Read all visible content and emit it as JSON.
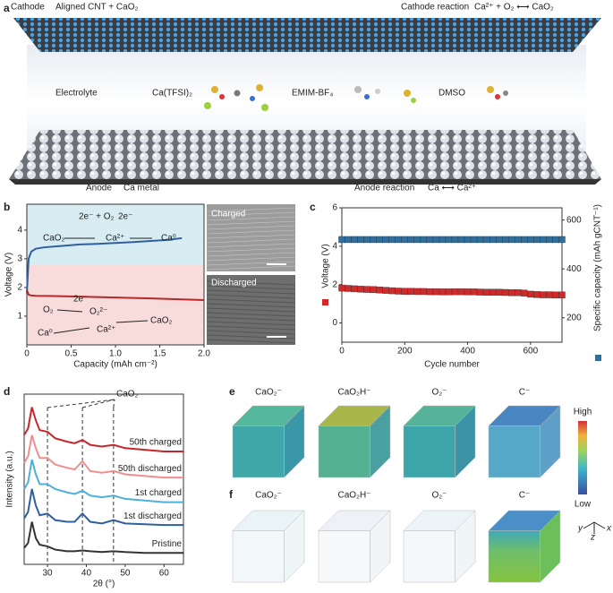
{
  "panel_labels": [
    "a",
    "b",
    "c",
    "d",
    "e",
    "f"
  ],
  "panel_a": {
    "cathode": "Cathode",
    "cathode_material": "Aligned CNT + CaO₂",
    "cathode_reaction": "Cathode reaction",
    "cathode_equation": "Ca²⁺ + O₂ ⟷ CaO₂",
    "electrolyte": "Electrolyte",
    "salt": "Ca(TFSI)₂",
    "ionic_liquid": "EMIM-BF₄",
    "solvent": "DMSO",
    "anode": "Anode",
    "anode_material": "Ca metal",
    "anode_reaction": "Anode reaction",
    "anode_equation": "Ca ⟷ Ca²⁺"
  },
  "chart_data": [
    {
      "type": "line",
      "xlabel": "Capacity (mAh cm⁻²)",
      "ylabel": "Voltage (V)",
      "xlim": [
        0,
        2.0
      ],
      "xticks": [
        0,
        0.5,
        {
          "value": 1,
          "label": "1.0"
        },
        1.5,
        {
          "value": 2,
          "label": "2.0"
        }
      ],
      "ylim": [
        0,
        4.9
      ],
      "yticks": [
        1,
        2,
        3,
        4
      ],
      "series": [
        {
          "color": "#2f5f9e",
          "x": [
            0,
            0.02,
            0.05,
            0.1,
            0.2,
            0.4,
            0.6,
            0.8,
            1.0,
            1.2,
            1.4,
            1.6,
            1.75
          ],
          "values": [
            1.8,
            3.0,
            3.25,
            3.35,
            3.4,
            3.45,
            3.5,
            3.52,
            3.55,
            3.58,
            3.62,
            3.66,
            3.72
          ]
        },
        {
          "color": "#b52a2a",
          "x": [
            0,
            0.02,
            0.05,
            0.1,
            0.3,
            0.6,
            1.0,
            1.4,
            1.8,
            2.0
          ],
          "values": [
            1.9,
            1.75,
            1.72,
            1.71,
            1.7,
            1.68,
            1.65,
            1.62,
            1.58,
            1.56
          ]
        }
      ],
      "annotations": [
        "2e⁻ + O₂",
        "2e⁻",
        "CaO₂",
        "Ca²⁺",
        "Ca⁰",
        "O₂",
        "O₂²⁻",
        "2e⁻",
        "Ca⁰",
        "Ca²⁺",
        "CaO₂"
      ],
      "inset_labels": [
        "Charged",
        "Discharged"
      ]
    },
    {
      "type": "scatter",
      "xlabel": "Cycle number",
      "ylabel": "Voltage (V)",
      "y2label": "Specific capacity (mAh gCNT⁻¹)",
      "xlim": [
        0,
        700
      ],
      "xticks": [
        0,
        200,
        400,
        600
      ],
      "ylim": [
        -1,
        6
      ],
      "yticks": [
        0,
        2,
        4,
        6
      ],
      "y2lim": [
        100,
        650
      ],
      "y2ticks": [
        200,
        400,
        600
      ],
      "x": [
        0,
        20,
        40,
        60,
        80,
        100,
        120,
        140,
        160,
        180,
        200,
        220,
        240,
        260,
        280,
        300,
        320,
        340,
        360,
        380,
        400,
        420,
        440,
        460,
        480,
        500,
        520,
        540,
        560,
        580,
        600,
        620,
        640,
        660,
        680,
        700
      ],
      "series": [
        {
          "color": "#d12a2a",
          "values": [
            1.82,
            1.8,
            1.78,
            1.76,
            1.75,
            1.74,
            1.72,
            1.7,
            1.68,
            1.66,
            1.65,
            1.65,
            1.64,
            1.64,
            1.63,
            1.63,
            1.62,
            1.62,
            1.63,
            1.63,
            1.62,
            1.62,
            1.61,
            1.6,
            1.6,
            1.6,
            1.59,
            1.58,
            1.58,
            1.56,
            1.5,
            1.48,
            1.47,
            1.47,
            1.46,
            1.46
          ]
        },
        {
          "color": "#2e6f9e",
          "axis": "y2",
          "values": [
            520,
            520,
            520,
            520,
            520,
            520,
            520,
            520,
            520,
            520,
            520,
            520,
            520,
            520,
            520,
            520,
            520,
            520,
            520,
            520,
            520,
            520,
            520,
            520,
            520,
            520,
            520,
            520,
            520,
            520,
            520,
            520,
            520,
            520,
            520,
            520
          ]
        }
      ]
    },
    {
      "type": "line",
      "xlabel": "2θ (°)",
      "ylabel": "Intensity (a.u.)",
      "xlim": [
        24,
        65
      ],
      "xticks": [
        30,
        40,
        50,
        60
      ],
      "ylim": [
        0,
        10.4
      ],
      "x": [
        24,
        25,
        26,
        27,
        28,
        30,
        32,
        35,
        37,
        39,
        41,
        44,
        47,
        50,
        55,
        60,
        65
      ],
      "series": [
        {
          "name": "Pristine",
          "color": "#333333",
          "values": [
            1.0,
            1.3,
            2.6,
            1.6,
            1.2,
            1.1,
            0.9,
            0.8,
            0.8,
            0.85,
            0.8,
            0.75,
            0.8,
            0.75,
            0.7,
            0.7,
            0.7
          ]
        },
        {
          "name": "1st discharged",
          "color": "#2f5f9e",
          "values": [
            2.8,
            3.2,
            4.6,
            3.6,
            3.0,
            3.1,
            2.7,
            2.6,
            2.6,
            3.1,
            2.6,
            2.5,
            2.7,
            2.5,
            2.45,
            2.4,
            2.4
          ]
        },
        {
          "name": "1st charged",
          "color": "#4fb0d8",
          "values": [
            4.6,
            5.0,
            6.4,
            5.5,
            4.9,
            4.9,
            4.6,
            4.4,
            4.3,
            4.5,
            4.2,
            4.1,
            4.2,
            4.0,
            3.9,
            3.8,
            3.8
          ]
        },
        {
          "name": "50th discharged",
          "color": "#ef8f8f",
          "values": [
            6.2,
            6.6,
            7.9,
            7.1,
            6.5,
            6.5,
            6.1,
            5.9,
            5.8,
            6.3,
            5.7,
            5.6,
            5.7,
            5.5,
            5.4,
            5.3,
            5.3
          ]
        },
        {
          "name": "50th charged",
          "color": "#c8262b",
          "values": [
            7.9,
            8.3,
            9.6,
            8.8,
            8.2,
            8.1,
            7.7,
            7.5,
            7.4,
            7.6,
            7.3,
            7.2,
            7.3,
            7.1,
            7.0,
            6.9,
            6.9
          ]
        }
      ],
      "reference_lines": [
        30,
        39,
        47
      ],
      "reference_label": "CaO₂"
    }
  ],
  "panel_e": {
    "titles": [
      "CaO₂⁻",
      "CaO₂H⁻",
      "O₂⁻",
      "C⁻"
    ]
  },
  "panel_f": {
    "titles": [
      "CaO₂⁻",
      "CaO₂H⁻",
      "O₂⁻",
      "C⁻"
    ]
  },
  "colorbar": {
    "high": "High",
    "low": "Low"
  },
  "axes_triad": {
    "x": "x",
    "y": "y",
    "z": "z"
  }
}
